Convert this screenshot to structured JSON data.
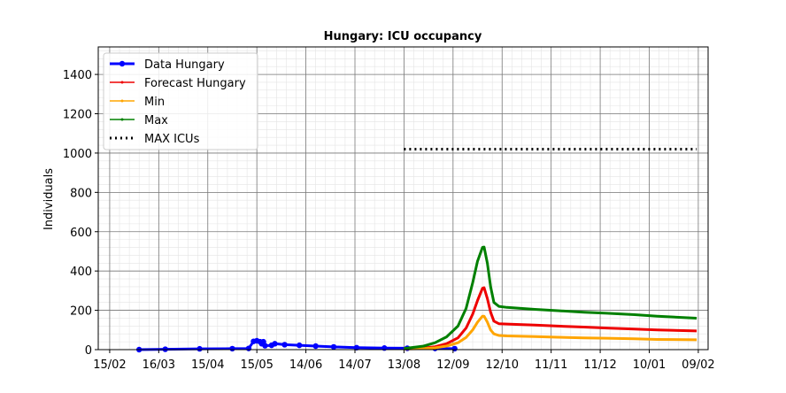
{
  "chart_data": {
    "type": "line",
    "title": "Hungary: ICU occupancy",
    "xlabel": "",
    "ylabel": "Individuals",
    "x_range": [
      "2020-02-08",
      "2021-02-15"
    ],
    "ylim": [
      0,
      1540
    ],
    "x_ticks": [
      "15/02",
      "16/03",
      "15/04",
      "15/05",
      "14/06",
      "14/07",
      "13/08",
      "12/09",
      "12/10",
      "11/11",
      "11/12",
      "10/01",
      "09/02"
    ],
    "x_tick_dates": [
      "2020-02-15",
      "2020-03-16",
      "2020-04-15",
      "2020-05-15",
      "2020-06-14",
      "2020-07-14",
      "2020-08-13",
      "2020-09-12",
      "2020-10-12",
      "2020-11-11",
      "2020-12-11",
      "2021-01-10",
      "2021-02-09"
    ],
    "y_ticks": [
      0,
      200,
      400,
      600,
      800,
      1000,
      1200,
      1400
    ],
    "grid": true,
    "legend": "top-left",
    "series": [
      {
        "name": "Data Hungary",
        "color": "#0000ff",
        "style": "line-dot",
        "points": [
          [
            "2020-03-04",
            0
          ],
          [
            "2020-03-20",
            2
          ],
          [
            "2020-04-10",
            4
          ],
          [
            "2020-04-30",
            5
          ],
          [
            "2020-05-10",
            6
          ],
          [
            "2020-05-13",
            42
          ],
          [
            "2020-05-15",
            45
          ],
          [
            "2020-05-17",
            40
          ],
          [
            "2020-05-18",
            30
          ],
          [
            "2020-05-19",
            40
          ],
          [
            "2020-05-20",
            20
          ],
          [
            "2020-05-24",
            22
          ],
          [
            "2020-05-26",
            30
          ],
          [
            "2020-06-01",
            25
          ],
          [
            "2020-06-10",
            22
          ],
          [
            "2020-06-20",
            18
          ],
          [
            "2020-07-01",
            14
          ],
          [
            "2020-07-15",
            10
          ],
          [
            "2020-08-01",
            8
          ],
          [
            "2020-08-15",
            7
          ],
          [
            "2020-09-01",
            6
          ],
          [
            "2020-09-13",
            5
          ]
        ]
      },
      {
        "name": "Forecast Hungary",
        "color": "#ee0000",
        "style": "line",
        "points": [
          [
            "2020-08-13",
            5
          ],
          [
            "2020-08-25",
            8
          ],
          [
            "2020-09-01",
            15
          ],
          [
            "2020-09-08",
            30
          ],
          [
            "2020-09-15",
            60
          ],
          [
            "2020-09-20",
            110
          ],
          [
            "2020-09-24",
            180
          ],
          [
            "2020-09-27",
            250
          ],
          [
            "2020-09-30",
            312
          ],
          [
            "2020-10-01",
            315
          ],
          [
            "2020-10-03",
            260
          ],
          [
            "2020-10-05",
            190
          ],
          [
            "2020-10-07",
            145
          ],
          [
            "2020-10-10",
            132
          ],
          [
            "2020-10-15",
            130
          ],
          [
            "2020-11-01",
            125
          ],
          [
            "2020-11-15",
            120
          ],
          [
            "2020-12-01",
            115
          ],
          [
            "2020-12-15",
            110
          ],
          [
            "2021-01-01",
            105
          ],
          [
            "2021-01-15",
            100
          ],
          [
            "2021-02-08",
            95
          ]
        ]
      },
      {
        "name": "Min",
        "color": "#ffa500",
        "style": "line",
        "points": [
          [
            "2020-08-13",
            3
          ],
          [
            "2020-08-25",
            5
          ],
          [
            "2020-09-01",
            9
          ],
          [
            "2020-09-08",
            18
          ],
          [
            "2020-09-15",
            35
          ],
          [
            "2020-09-20",
            62
          ],
          [
            "2020-09-24",
            100
          ],
          [
            "2020-09-27",
            140
          ],
          [
            "2020-09-30",
            170
          ],
          [
            "2020-10-01",
            170
          ],
          [
            "2020-10-03",
            140
          ],
          [
            "2020-10-05",
            100
          ],
          [
            "2020-10-07",
            80
          ],
          [
            "2020-10-10",
            72
          ],
          [
            "2020-10-15",
            70
          ],
          [
            "2020-11-01",
            66
          ],
          [
            "2020-11-15",
            63
          ],
          [
            "2020-12-01",
            60
          ],
          [
            "2020-12-15",
            58
          ],
          [
            "2021-01-01",
            55
          ],
          [
            "2021-01-15",
            52
          ],
          [
            "2021-02-08",
            50
          ]
        ]
      },
      {
        "name": "Max",
        "color": "#008000",
        "style": "line",
        "points": [
          [
            "2020-08-13",
            6
          ],
          [
            "2020-08-25",
            18
          ],
          [
            "2020-09-01",
            35
          ],
          [
            "2020-09-08",
            65
          ],
          [
            "2020-09-15",
            120
          ],
          [
            "2020-09-20",
            210
          ],
          [
            "2020-09-24",
            340
          ],
          [
            "2020-09-27",
            450
          ],
          [
            "2020-09-30",
            520
          ],
          [
            "2020-10-01",
            522
          ],
          [
            "2020-10-03",
            440
          ],
          [
            "2020-10-05",
            320
          ],
          [
            "2020-10-07",
            240
          ],
          [
            "2020-10-10",
            220
          ],
          [
            "2020-10-15",
            215
          ],
          [
            "2020-11-01",
            205
          ],
          [
            "2020-11-15",
            198
          ],
          [
            "2020-12-01",
            190
          ],
          [
            "2020-12-15",
            185
          ],
          [
            "2021-01-01",
            178
          ],
          [
            "2021-01-15",
            170
          ],
          [
            "2021-02-08",
            160
          ]
        ]
      },
      {
        "name": "MAX ICUs",
        "color": "#000000",
        "style": "dotted",
        "points": [
          [
            "2020-08-13",
            1020
          ],
          [
            "2021-02-08",
            1020
          ]
        ]
      }
    ]
  }
}
